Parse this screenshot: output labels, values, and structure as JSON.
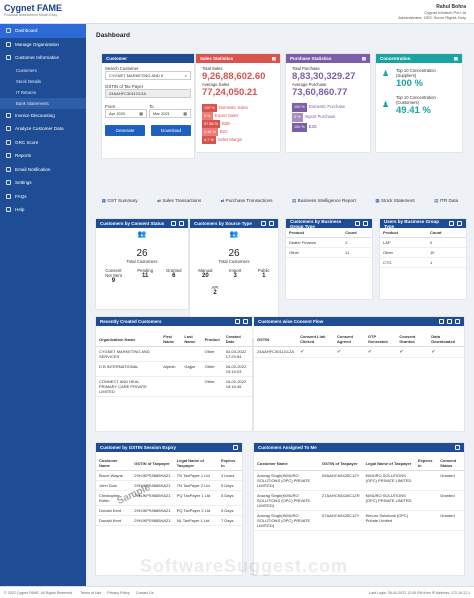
{
  "brand": {
    "name": "Cygnet FAME",
    "tagline": "Financial Assessment Model Easy"
  },
  "user": {
    "name": "Rahul Bohra",
    "org": "Cygnet Infotech Pvt Ltd",
    "role": "Administrator, GRC Score Rights Only"
  },
  "sidebar": {
    "items": [
      {
        "label": "Dashboard",
        "active": true,
        "type": "main"
      },
      {
        "label": "Manage Organization",
        "type": "main"
      },
      {
        "label": "Customer Information",
        "type": "main"
      },
      {
        "label": "Customers",
        "type": "sub"
      },
      {
        "label": "Stock Details",
        "type": "sub"
      },
      {
        "label": "IT Returns",
        "type": "sub"
      },
      {
        "label": "Bank Statements",
        "type": "sub",
        "active": true
      },
      {
        "label": "Invoice Discounting",
        "type": "main"
      },
      {
        "label": "Analyze Customer Data",
        "type": "main"
      },
      {
        "label": "GRC Score",
        "type": "main"
      },
      {
        "label": "Reports",
        "type": "main"
      },
      {
        "label": "Email Notification",
        "type": "main"
      },
      {
        "label": "Settings",
        "type": "main"
      },
      {
        "label": "FAQs",
        "type": "main"
      },
      {
        "label": "Help",
        "type": "main"
      }
    ]
  },
  "dashboard": {
    "title": "Dashboard"
  },
  "customer": {
    "header": "Customer",
    "search_label": "Search Customer",
    "search_value": "CYGNET MARKETING AND K",
    "gstin_label": "GSTIN of Tax Payer",
    "gstin_value": "24AAHFC3011G1ZA",
    "from_label": "From",
    "to_label": "To",
    "from_value": "Apr 2020",
    "to_value": "Mar 2021",
    "generate": "Generate",
    "download": "Download"
  },
  "sales": {
    "header": "Sales Statistics",
    "total_label": "Total Sales",
    "total": "9,26,88,602.60",
    "avg_label": "Average Sales",
    "avg": "77,24,050.21",
    "rows": [
      {
        "pct": "100 %",
        "label": "Domestic Sales"
      },
      {
        "pct": "0 %",
        "label": "Export Sales"
      },
      {
        "pct": "97.56 %",
        "label": "B2B"
      },
      {
        "pct": "2.44 %",
        "label": "B2C"
      },
      {
        "pct": "4.7 %",
        "label": "Sales Margin"
      }
    ]
  },
  "purchase": {
    "header": "Purchase Statistics",
    "total_label": "Total Purchase",
    "total": "8,83,30,329.27",
    "avg_label": "Average Purchase",
    "avg": "73,60,860.77",
    "rows": [
      {
        "pct": "100 %",
        "label": "Domestic Purchase"
      },
      {
        "pct": "0 %",
        "label": "Import Purchase"
      },
      {
        "pct": "100 %",
        "label": "B2B"
      }
    ]
  },
  "concentration": {
    "header": "Concentration",
    "sup_label": "Top 10 Concentration (Suppliers)",
    "sup_value": "100 %",
    "cus_label": "Top 10 Concentration (Customers)",
    "cus_value": "49.41 %"
  },
  "tabs": [
    "GST Summary",
    "Sales Transactions",
    "Purchase Transactions",
    "Business Intelligence Report",
    "Stock Statement",
    "ITR Data"
  ],
  "consent_status": {
    "header": "Customers by Consent Status",
    "total": "26",
    "total_label": "Total Customers",
    "cols": [
      {
        "label": "Consent Not Sent",
        "value": "9"
      },
      {
        "label": "Pending",
        "value": "11"
      },
      {
        "label": "Granted",
        "value": "6"
      }
    ]
  },
  "source_type": {
    "header": "Customers by Source Type",
    "total": "26",
    "total_label": "Total Customers",
    "cols": [
      {
        "label": "Manual",
        "value": "20"
      },
      {
        "label": "Import",
        "value": "3"
      },
      {
        "label": "Public",
        "value": "1"
      }
    ],
    "api_label": "API",
    "api_value": "2"
  },
  "biz_group": {
    "header": "Customers by Business Group Type",
    "col1": "Product",
    "col2": "Count",
    "rows": [
      {
        "name": "Dealer Finance",
        "count": "2"
      },
      {
        "name": "Other",
        "count": "11"
      }
    ]
  },
  "users_biz": {
    "header": "Users by Business Group Type",
    "col1": "Product",
    "col2": "Count",
    "rows": [
      {
        "name": "LAP",
        "count": "0"
      },
      {
        "name": "Other",
        "count": "10"
      },
      {
        "name": "CTG",
        "count": "1"
      }
    ]
  },
  "recent": {
    "header": "Recently Created Customers",
    "cols": [
      "Organization Name",
      "First Name",
      "Last Name",
      "Product",
      "Created Date"
    ],
    "rows": [
      [
        "CYGNET MARKETING AND SERVICES",
        "",
        "",
        "Other",
        "03-03-2022 17:29:54"
      ],
      [
        "D B INTERNATIONAL",
        "Alpesh",
        "Gajjar",
        "Other",
        "26-02-2022 15:19:03"
      ],
      [
        "CONNECT AND HEAL PRIMARY CARE PRIVATE LIMITED",
        "",
        "",
        "Other",
        "16-02-2022 18:16:45"
      ]
    ]
  },
  "consent_flow": {
    "header": "Customers wise Consent Flow",
    "cols": [
      "GSTIN",
      "Consent Link Clicked",
      "Consent Agreed",
      "OTP Generated",
      "Consent Granted",
      "Data Downloaded"
    ],
    "rows": [
      {
        "gstin": "24AAHFC3011G1ZA"
      }
    ]
  },
  "session": {
    "header": "Customer by GSTIN Session Expiry",
    "cols": [
      "Customer Name",
      "GSTIN of Taxpayer",
      "Legal Name of Taxpayer",
      "Expires In"
    ],
    "rows": [
      [
        "Bruce Wayne",
        "29HJKPS9685HAZ1",
        "TN TaxPayer 1 Ltd",
        "4 hours"
      ],
      [
        "John Dow",
        "29HJKPS9685HAZ1",
        "TN TaxPayer 2 Ltd",
        "5 Days"
      ],
      [
        "Christopher Robin",
        "29HJKPS9685HAZ1",
        "PQ TaxPayer 1 Ltd",
        "5 Days"
      ],
      [
        "Donald Kent",
        "29HJKPS9685HAZ1",
        "PQ TaxPayer 2 Ltd",
        "5 Days"
      ],
      [
        "Donald Kent",
        "29HJKPS9685HAZ1",
        "NL TaxPayer 1 Ltd",
        "7 Days"
      ]
    ]
  },
  "assigned": {
    "header": "Customers Assigned To Me",
    "cols": [
      "Customer Name",
      "GSTIN of Taxpayer",
      "Legal Name of Taxpayer",
      "Expires In",
      "Consent Status"
    ],
    "rows": [
      [
        "Anurag Singh(KIMURO SOLUTIONS (OPC) PRIVATE LIMITED)",
        "09AAHCK8426C1ZY",
        "KIMURO SOLUTIONS (OPC) PRIVATE LIMITED",
        "",
        "Granted"
      ],
      [
        "Anurag Singh(KIMURO SOLUTIONS (OPC) PRIVATE LIMITED)",
        "27AAHCK8426C1ZR",
        "KIMURO SOLUTIONS (OPC) PRIVATE LIMITED",
        "",
        "Granted"
      ],
      [
        "Anurag Singh(KIMURO SOLUTIONS (OPC) PRIVATE LIMITED)",
        "07AAHCK8426C1ZY",
        "Kimuro Solutions (OPC) Private Limited",
        "",
        "Granted"
      ]
    ]
  },
  "footer": {
    "left": "© 2022 Cygnet FAME. All Rights Reserved.",
    "links": [
      "Terms of Use",
      "Privacy Policy",
      "Contact Us"
    ],
    "right": "Last Login: 26-04-2022 12:05 PM  from IP Address: 172.16.12.1"
  },
  "watermark": "SoftwareSuggest.com",
  "sample": "Sample"
}
